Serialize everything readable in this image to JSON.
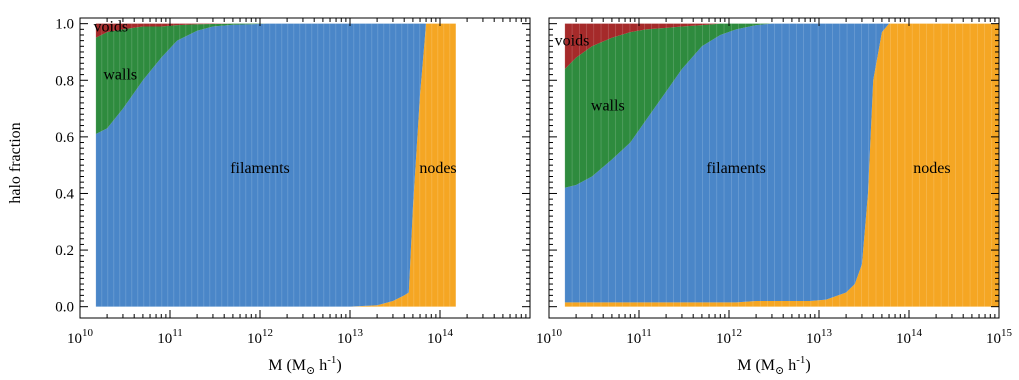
{
  "colors": {
    "voids": "#a52a2a",
    "walls": "#2e8b3e",
    "filaments": "#4a86c8",
    "nodes": "#f5a623"
  },
  "ylabel": "halo fraction",
  "chart_data": [
    {
      "type": "area",
      "stacked": true,
      "x_scale": "log",
      "xlim": [
        10000000000.0,
        1000000000000000.0
      ],
      "ylim": [
        -0.04,
        1.02
      ],
      "xlabel": "M (M",
      "xlabel_sub": "⊙",
      "xlabel_tail": " h",
      "xlabel_exp": "-1",
      "xlabel_close": ")",
      "ylabel": "halo fraction",
      "x_ticks": [
        {
          "base": "10",
          "exp": "10"
        },
        {
          "base": "10",
          "exp": "11"
        },
        {
          "base": "10",
          "exp": "12"
        },
        {
          "base": "10",
          "exp": "13"
        },
        {
          "base": "10",
          "exp": "14"
        }
      ],
      "y_ticks": [
        "0.0",
        "0.2",
        "0.4",
        "0.6",
        "0.8",
        "1.0"
      ],
      "x": [
        15000000000.0,
        20000000000.0,
        30000000000.0,
        50000000000.0,
        80000000000.0,
        120000000000.0,
        200000000000.0,
        300000000000.0,
        500000000000.0,
        800000000000.0,
        1200000000000.0,
        2000000000000.0,
        5000000000000.0,
        10000000000000.0,
        20000000000000.0,
        30000000000000.0,
        40000000000000.0,
        45000000000000.0,
        50000000000000.0,
        60000000000000.0,
        70000000000000.0,
        100000000000000.0,
        150000000000000.0
      ],
      "series": [
        {
          "name": "nodes",
          "values": [
            0,
            0,
            0,
            0,
            0,
            0,
            0,
            0,
            0,
            0,
            0,
            0,
            0,
            0,
            0.005,
            0.02,
            0.04,
            0.05,
            0.35,
            0.75,
            1.0,
            1.0,
            1.0
          ]
        },
        {
          "name": "filaments",
          "values": [
            0.61,
            0.63,
            0.7,
            0.8,
            0.88,
            0.94,
            0.975,
            0.99,
            0.996,
            0.998,
            1.0,
            1.0,
            1.0,
            1.0,
            0.995,
            0.98,
            0.96,
            0.95,
            0.65,
            0.25,
            0,
            0,
            0
          ]
        },
        {
          "name": "walls",
          "values": [
            0.34,
            0.34,
            0.28,
            0.19,
            0.11,
            0.055,
            0.023,
            0.009,
            0.004,
            0.002,
            0,
            0,
            0,
            0,
            0,
            0,
            0,
            0,
            0,
            0,
            0,
            0,
            0
          ]
        },
        {
          "name": "voids",
          "values": [
            0.05,
            0.03,
            0.02,
            0.01,
            0.01,
            0.005,
            0.002,
            0.001,
            0,
            0,
            0,
            0,
            0,
            0,
            0,
            0,
            0,
            0,
            0,
            0,
            0,
            0,
            0
          ]
        }
      ],
      "annotations": [
        {
          "text": "voids",
          "x": 22000000000.0,
          "y": 0.99
        },
        {
          "text": "walls",
          "x": 28000000000.0,
          "y": 0.82
        },
        {
          "text": "filaments",
          "x": 1000000000000.0,
          "y": 0.49
        },
        {
          "text": "nodes",
          "x": 95000000000000.0,
          "y": 0.49
        }
      ]
    },
    {
      "type": "area",
      "stacked": true,
      "x_scale": "log",
      "xlim": [
        10000000000.0,
        1000000000000000.0
      ],
      "ylim": [
        -0.04,
        1.02
      ],
      "xlabel": "M (M",
      "xlabel_sub": "⊙",
      "xlabel_tail": " h",
      "xlabel_exp": "-1",
      "xlabel_close": ")",
      "x_ticks": [
        {
          "base": "10",
          "exp": "10"
        },
        {
          "base": "10",
          "exp": "11"
        },
        {
          "base": "10",
          "exp": "12"
        },
        {
          "base": "10",
          "exp": "13"
        },
        {
          "base": "10",
          "exp": "14"
        },
        {
          "base": "10",
          "exp": "15"
        }
      ],
      "x": [
        15000000000.0,
        20000000000.0,
        30000000000.0,
        50000000000.0,
        80000000000.0,
        120000000000.0,
        200000000000.0,
        300000000000.0,
        500000000000.0,
        800000000000.0,
        1200000000000.0,
        2000000000000.0,
        3000000000000.0,
        5000000000000.0,
        8000000000000.0,
        12000000000000.0,
        20000000000000.0,
        25000000000000.0,
        30000000000000.0,
        35000000000000.0,
        40000000000000.0,
        50000000000000.0,
        60000000000000.0,
        100000000000000.0,
        300000000000000.0,
        1000000000000000.0
      ],
      "series": [
        {
          "name": "nodes",
          "values": [
            0.015,
            0.015,
            0.015,
            0.015,
            0.015,
            0.015,
            0.015,
            0.015,
            0.015,
            0.015,
            0.015,
            0.02,
            0.02,
            0.02,
            0.02,
            0.025,
            0.05,
            0.08,
            0.15,
            0.4,
            0.8,
            0.97,
            1.0,
            1.0,
            1.0,
            1.0
          ]
        },
        {
          "name": "filaments",
          "values": [
            0.405,
            0.415,
            0.445,
            0.505,
            0.565,
            0.645,
            0.745,
            0.825,
            0.905,
            0.945,
            0.965,
            0.975,
            0.98,
            0.98,
            0.98,
            0.975,
            0.95,
            0.92,
            0.85,
            0.6,
            0.2,
            0.03,
            0,
            0,
            0,
            0
          ]
        },
        {
          "name": "walls",
          "values": [
            0.42,
            0.45,
            0.46,
            0.43,
            0.39,
            0.32,
            0.225,
            0.15,
            0.075,
            0.04,
            0.02,
            0.005,
            0,
            0,
            0,
            0,
            0,
            0,
            0,
            0,
            0,
            0,
            0,
            0,
            0,
            0
          ]
        },
        {
          "name": "voids",
          "values": [
            0.16,
            0.12,
            0.08,
            0.05,
            0.03,
            0.02,
            0.015,
            0.01,
            0.005,
            0,
            0,
            0,
            0,
            0,
            0,
            0,
            0,
            0,
            0,
            0,
            0,
            0,
            0,
            0,
            0,
            0
          ]
        }
      ],
      "annotations": [
        {
          "text": "voids",
          "x": 18000000000.0,
          "y": 0.94
        },
        {
          "text": "walls",
          "x": 45000000000.0,
          "y": 0.71
        },
        {
          "text": "filaments",
          "x": 1200000000000.0,
          "y": 0.49
        },
        {
          "text": "nodes",
          "x": 180000000000000.0,
          "y": 0.49
        }
      ]
    }
  ]
}
